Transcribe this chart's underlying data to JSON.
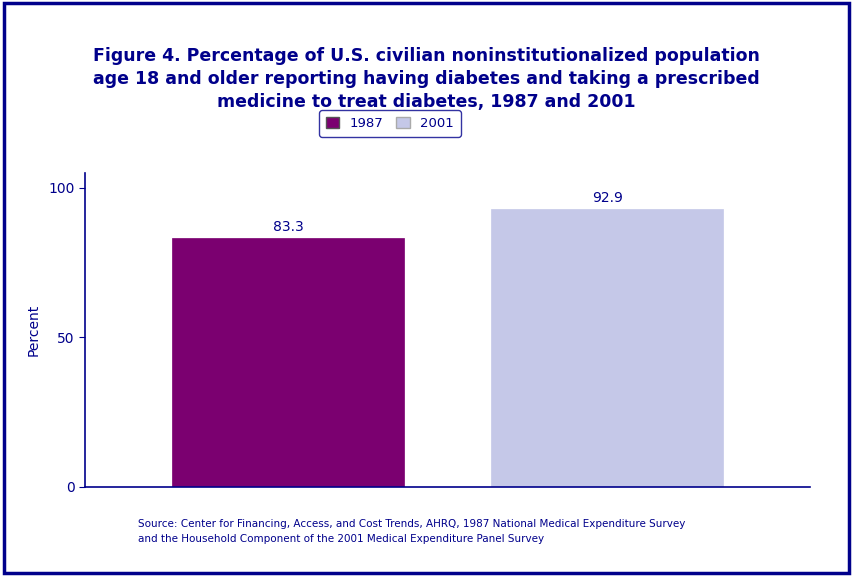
{
  "title_line1": "Figure 4. Percentage of U.S. civilian noninstitutionalized population",
  "title_line2": "age 18 and older reporting having diabetes and taking a prescribed",
  "title_line3": "medicine to treat diabetes, 1987 and 2001",
  "values": [
    83.3,
    92.9
  ],
  "bar_colors": [
    "#7b0070",
    "#c5c8e8"
  ],
  "ylabel": "Percent",
  "ylim": [
    0,
    105
  ],
  "yticks": [
    0,
    50,
    100
  ],
  "title_color": "#00008b",
  "title_fontsize": 12.5,
  "ylabel_color": "#00008b",
  "ylabel_fontsize": 10,
  "tick_label_color": "#00008b",
  "tick_label_fontsize": 10,
  "value_label_fontsize": 10,
  "value_label_color": "#00008b",
  "legend_labels": [
    "1987",
    "2001"
  ],
  "legend_colors": [
    "#7b0070",
    "#c5c8e8"
  ],
  "bg_color": "#ffffff",
  "border_color": "#00008b",
  "divider_color": "#00008b",
  "source_text_line1": "Source: Center for Financing, Access, and Cost Trends, AHRQ, 1987 National Medical Expenditure Survey",
  "source_text_line2": "and the Household Component of the 2001 Medical Expenditure Panel Survey",
  "source_fontsize": 7.5,
  "source_color": "#00008b",
  "axis_line_color": "#00008b"
}
